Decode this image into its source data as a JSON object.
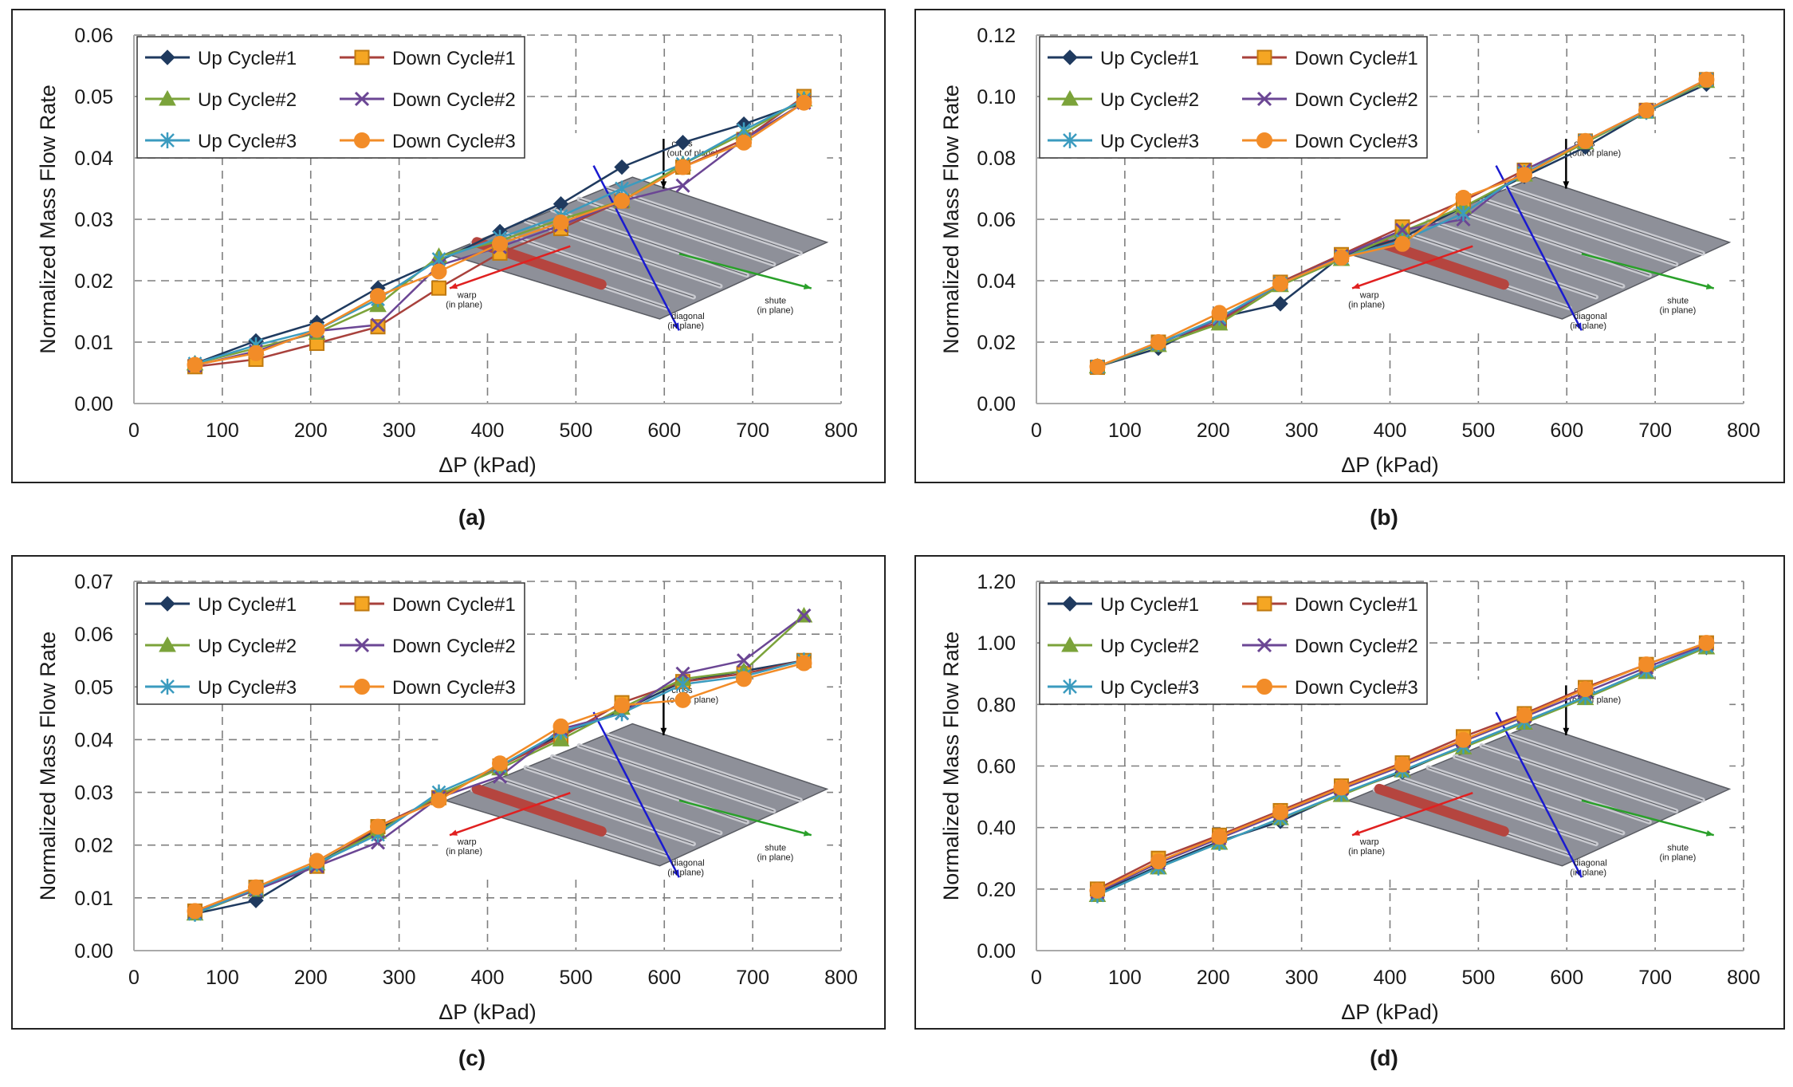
{
  "figure": {
    "series_styles": [
      {
        "name": "Up Cycle#1",
        "color": "#1f3a5f",
        "marker": "diamond"
      },
      {
        "name": "Down Cycle#1",
        "color": "#a8413c",
        "marker": "square",
        "marker_fill": "#f5a623",
        "marker_stroke": "#c07a10"
      },
      {
        "name": "Up Cycle#2",
        "color": "#7ba33a",
        "marker": "triangle"
      },
      {
        "name": "Down Cycle#2",
        "color": "#6b4694",
        "marker": "x"
      },
      {
        "name": "Up Cycle#3",
        "color": "#3b9bbf",
        "marker": "asterisk"
      },
      {
        "name": "Down Cycle#3",
        "color": "#f28c28",
        "marker": "circle"
      }
    ],
    "inset_labels": {
      "cross": "cross",
      "cross_sub": "(out of plane)",
      "warp": "warp",
      "warp_sub": "(in plane)",
      "shute": "shute",
      "shute_sub": "(in plane)",
      "diagonal": "diagonal",
      "diagonal_sub": "(in plane)"
    },
    "inset_colors": {
      "cross": "#000000",
      "warp": "#e02020",
      "shute": "#2aa02a",
      "diagonal": "#1a1ad0"
    }
  },
  "chart_data": [
    {
      "type": "line",
      "panel_label": "(a)",
      "xlabel": "ΔP (kPad)",
      "ylabel": "Normalized Mass Flow Rate",
      "xlim": [
        0,
        800
      ],
      "ylim": [
        0,
        0.06
      ],
      "x_ticks": [
        "0",
        "100",
        "200",
        "300",
        "400",
        "500",
        "600",
        "700",
        "800"
      ],
      "y_ticks": [
        "0.00",
        "0.01",
        "0.02",
        "0.03",
        "0.04",
        "0.05",
        "0.06"
      ],
      "grid": true,
      "legend": "top-left",
      "x": [
        69,
        138,
        207,
        276,
        345,
        414,
        483,
        552,
        621,
        690,
        758
      ],
      "series": [
        {
          "name": "Up Cycle#1",
          "values": [
            0.0065,
            0.0102,
            0.0132,
            0.0188,
            0.0232,
            0.028,
            0.0325,
            0.0385,
            0.0425,
            0.0455,
            0.049
          ]
        },
        {
          "name": "Down Cycle#1",
          "values": [
            0.006,
            0.0072,
            0.0098,
            0.0125,
            0.0188,
            0.0245,
            0.0285,
            0.033,
            0.0385,
            0.043,
            0.05
          ]
        },
        {
          "name": "Up Cycle#2",
          "values": [
            0.0065,
            0.009,
            0.0115,
            0.016,
            0.024,
            0.0265,
            0.03,
            0.033,
            0.039,
            0.044,
            0.0495
          ]
        },
        {
          "name": "Down Cycle#2",
          "values": [
            0.0062,
            0.0085,
            0.0118,
            0.0128,
            0.0225,
            0.0255,
            0.029,
            0.033,
            0.0355,
            0.043,
            0.049
          ]
        },
        {
          "name": "Up Cycle#3",
          "values": [
            0.0065,
            0.0095,
            0.012,
            0.017,
            0.0235,
            0.027,
            0.0305,
            0.035,
            0.039,
            0.0445,
            0.0495
          ]
        },
        {
          "name": "Down Cycle#3",
          "values": [
            0.0063,
            0.0082,
            0.012,
            0.0175,
            0.0215,
            0.026,
            0.0295,
            0.033,
            0.0385,
            0.0425,
            0.049
          ]
        }
      ]
    },
    {
      "type": "line",
      "panel_label": "(b)",
      "xlabel": "ΔP (kPad)",
      "ylabel": "Normalized Mass Flow Rate",
      "xlim": [
        0,
        800
      ],
      "ylim": [
        0,
        0.12
      ],
      "x_ticks": [
        "0",
        "100",
        "200",
        "300",
        "400",
        "500",
        "600",
        "700",
        "800"
      ],
      "y_ticks": [
        "0.00",
        "0.02",
        "0.04",
        "0.06",
        "0.08",
        "0.10",
        "0.12"
      ],
      "grid": true,
      "legend": "top-left",
      "x": [
        69,
        138,
        207,
        276,
        345,
        414,
        483,
        552,
        621,
        690,
        758
      ],
      "series": [
        {
          "name": "Up Cycle#1",
          "values": [
            0.012,
            0.018,
            0.028,
            0.0325,
            0.048,
            0.054,
            0.064,
            0.074,
            0.0835,
            0.095,
            0.104
          ]
        },
        {
          "name": "Down Cycle#1",
          "values": [
            0.0118,
            0.02,
            0.0265,
            0.0395,
            0.0485,
            0.0575,
            0.066,
            0.076,
            0.0855,
            0.0955,
            0.1055
          ]
        },
        {
          "name": "Up Cycle#2",
          "values": [
            0.012,
            0.019,
            0.026,
            0.0385,
            0.047,
            0.056,
            0.064,
            0.0745,
            0.085,
            0.095,
            0.105
          ]
        },
        {
          "name": "Down Cycle#2",
          "values": [
            0.012,
            0.0195,
            0.0275,
            0.039,
            0.048,
            0.0565,
            0.06,
            0.076,
            0.0855,
            0.0955,
            0.1055
          ]
        },
        {
          "name": "Up Cycle#3",
          "values": [
            0.012,
            0.0195,
            0.028,
            0.039,
            0.0475,
            0.053,
            0.062,
            0.075,
            0.0855,
            0.095,
            0.1055
          ]
        },
        {
          "name": "Down Cycle#3",
          "values": [
            0.012,
            0.02,
            0.0295,
            0.039,
            0.0475,
            0.052,
            0.067,
            0.0745,
            0.0855,
            0.0955,
            0.1055
          ]
        }
      ]
    },
    {
      "type": "line",
      "panel_label": "(c)",
      "xlabel": "ΔP (kPad)",
      "ylabel": "Normalized Mass Flow Rate",
      "xlim": [
        0,
        800
      ],
      "ylim": [
        0,
        0.07
      ],
      "x_ticks": [
        "0",
        "100",
        "200",
        "300",
        "400",
        "500",
        "600",
        "700",
        "800"
      ],
      "y_ticks": [
        "0.00",
        "0.01",
        "0.02",
        "0.03",
        "0.04",
        "0.05",
        "0.06",
        "0.07"
      ],
      "grid": true,
      "legend": "top-left",
      "x": [
        69,
        138,
        207,
        276,
        345,
        414,
        483,
        552,
        621,
        690,
        758
      ],
      "series": [
        {
          "name": "Up Cycle#1",
          "values": [
            0.007,
            0.0095,
            0.0165,
            0.023,
            0.029,
            0.035,
            0.041,
            0.0455,
            0.051,
            0.053,
            0.055
          ]
        },
        {
          "name": "Down Cycle#1",
          "values": [
            0.0075,
            0.012,
            0.016,
            0.0235,
            0.029,
            0.035,
            0.0405,
            0.047,
            0.051,
            0.0525,
            0.055
          ]
        },
        {
          "name": "Up Cycle#2",
          "values": [
            0.007,
            0.0115,
            0.0165,
            0.0225,
            0.0295,
            0.0345,
            0.04,
            0.046,
            0.0515,
            0.053,
            0.0635
          ]
        },
        {
          "name": "Down Cycle#2",
          "values": [
            0.0072,
            0.0115,
            0.016,
            0.0205,
            0.029,
            0.033,
            0.042,
            0.045,
            0.0525,
            0.055,
            0.0635
          ]
        },
        {
          "name": "Up Cycle#3",
          "values": [
            0.007,
            0.0118,
            0.0165,
            0.022,
            0.03,
            0.035,
            0.0415,
            0.045,
            0.0505,
            0.052,
            0.055
          ]
        },
        {
          "name": "Down Cycle#3",
          "values": [
            0.0075,
            0.012,
            0.017,
            0.0235,
            0.0285,
            0.0355,
            0.0425,
            0.0465,
            0.0475,
            0.0515,
            0.0545
          ]
        }
      ]
    },
    {
      "type": "line",
      "panel_label": "(d)",
      "xlabel": "ΔP (kPad)",
      "ylabel": "Normalized Mass Flow Rate",
      "xlim": [
        0,
        800
      ],
      "ylim": [
        0,
        1.2
      ],
      "x_ticks": [
        "0",
        "100",
        "200",
        "300",
        "400",
        "500",
        "600",
        "700",
        "800"
      ],
      "y_ticks": [
        "0.00",
        "0.20",
        "0.40",
        "0.60",
        "0.80",
        "1.00",
        "1.20"
      ],
      "grid": true,
      "legend": "top-left",
      "x": [
        69,
        138,
        207,
        276,
        345,
        414,
        483,
        552,
        621,
        690,
        758
      ],
      "series": [
        {
          "name": "Up Cycle#1",
          "values": [
            0.185,
            0.275,
            0.355,
            0.42,
            0.51,
            0.58,
            0.665,
            0.745,
            0.825,
            0.91,
            0.985
          ]
        },
        {
          "name": "Down Cycle#1",
          "values": [
            0.2,
            0.3,
            0.375,
            0.455,
            0.535,
            0.61,
            0.695,
            0.77,
            0.855,
            0.93,
            1.0
          ]
        },
        {
          "name": "Up Cycle#2",
          "values": [
            0.18,
            0.27,
            0.35,
            0.43,
            0.505,
            0.585,
            0.66,
            0.74,
            0.82,
            0.905,
            0.985
          ]
        },
        {
          "name": "Down Cycle#2",
          "values": [
            0.19,
            0.285,
            0.365,
            0.445,
            0.525,
            0.6,
            0.68,
            0.76,
            0.84,
            0.92,
            0.995
          ]
        },
        {
          "name": "Up Cycle#3",
          "values": [
            0.18,
            0.27,
            0.35,
            0.43,
            0.51,
            0.585,
            0.665,
            0.745,
            0.825,
            0.91,
            0.99
          ]
        },
        {
          "name": "Down Cycle#3",
          "values": [
            0.195,
            0.29,
            0.37,
            0.45,
            0.53,
            0.605,
            0.685,
            0.765,
            0.85,
            0.93,
            1.0
          ]
        }
      ]
    }
  ]
}
